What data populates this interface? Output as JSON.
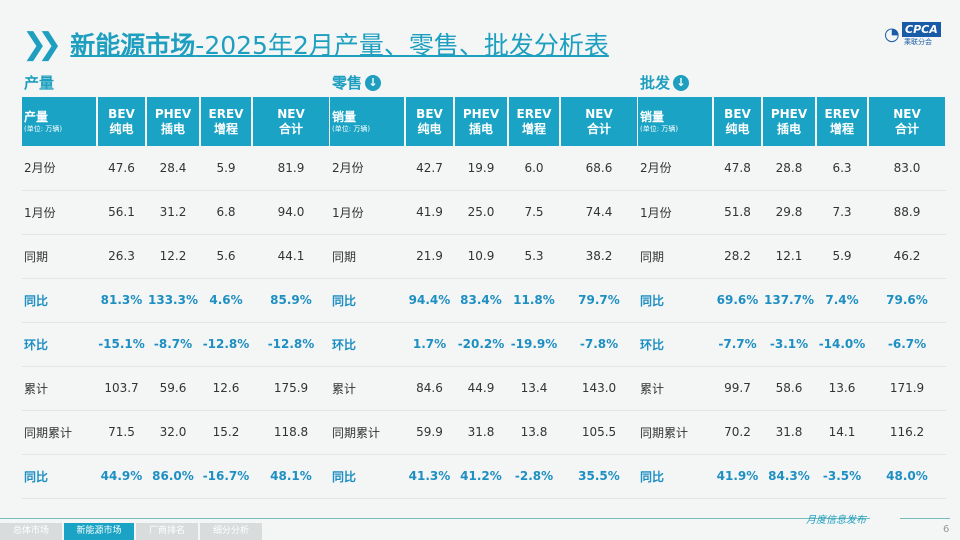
{
  "title": {
    "bold": "新能源市场",
    "rest": "-2025年2月产量、零售、批发分析表"
  },
  "logo": {
    "text": "CPCA",
    "sub": "乘联分会"
  },
  "col_headers": [
    {
      "en": "BEV",
      "zh": "纯电"
    },
    {
      "en": "PHEV",
      "zh": "插电"
    },
    {
      "en": "EREV",
      "zh": "增程"
    },
    {
      "en": "NEV",
      "zh": "合计"
    }
  ],
  "unit": "(单位: 万辆)",
  "tables": [
    {
      "section": "产量",
      "label_header": "产量",
      "rows": [
        {
          "label": "2月份",
          "values": [
            "47.6",
            "28.4",
            "5.9",
            "81.9"
          ],
          "highlight": false
        },
        {
          "label": "1月份",
          "values": [
            "56.1",
            "31.2",
            "6.8",
            "94.0"
          ],
          "highlight": false
        },
        {
          "label": "同期",
          "values": [
            "26.3",
            "12.2",
            "5.6",
            "44.1"
          ],
          "highlight": false
        },
        {
          "label": "同比",
          "values": [
            "81.3%",
            "133.3%",
            "4.6%",
            "85.9%"
          ],
          "highlight": true
        },
        {
          "label": "环比",
          "values": [
            "-15.1%",
            "-8.7%",
            "-12.8%",
            "-12.8%"
          ],
          "highlight": true
        },
        {
          "label": "累计",
          "values": [
            "103.7",
            "59.6",
            "12.6",
            "175.9"
          ],
          "highlight": false
        },
        {
          "label": "同期累计",
          "values": [
            "71.5",
            "32.0",
            "15.2",
            "118.8"
          ],
          "highlight": false
        },
        {
          "label": "同比",
          "values": [
            "44.9%",
            "86.0%",
            "-16.7%",
            "48.1%"
          ],
          "highlight": true
        }
      ]
    },
    {
      "section": "零售",
      "label_header": "销量",
      "rows": [
        {
          "label": "2月份",
          "values": [
            "42.7",
            "19.9",
            "6.0",
            "68.6"
          ],
          "highlight": false
        },
        {
          "label": "1月份",
          "values": [
            "41.9",
            "25.0",
            "7.5",
            "74.4"
          ],
          "highlight": false
        },
        {
          "label": "同期",
          "values": [
            "21.9",
            "10.9",
            "5.3",
            "38.2"
          ],
          "highlight": false
        },
        {
          "label": "同比",
          "values": [
            "94.4%",
            "83.4%",
            "11.8%",
            "79.7%"
          ],
          "highlight": true
        },
        {
          "label": "环比",
          "values": [
            "1.7%",
            "-20.2%",
            "-19.9%",
            "-7.8%"
          ],
          "highlight": true
        },
        {
          "label": "累计",
          "values": [
            "84.6",
            "44.9",
            "13.4",
            "143.0"
          ],
          "highlight": false
        },
        {
          "label": "同期累计",
          "values": [
            "59.9",
            "31.8",
            "13.8",
            "105.5"
          ],
          "highlight": false
        },
        {
          "label": "同比",
          "values": [
            "41.3%",
            "41.2%",
            "-2.8%",
            "35.5%"
          ],
          "highlight": true
        }
      ]
    },
    {
      "section": "批发",
      "label_header": "销量",
      "rows": [
        {
          "label": "2月份",
          "values": [
            "47.8",
            "28.8",
            "6.3",
            "83.0"
          ],
          "highlight": false
        },
        {
          "label": "1月份",
          "values": [
            "51.8",
            "29.8",
            "7.3",
            "88.9"
          ],
          "highlight": false
        },
        {
          "label": "同期",
          "values": [
            "28.2",
            "12.1",
            "5.9",
            "46.2"
          ],
          "highlight": false
        },
        {
          "label": "同比",
          "values": [
            "69.6%",
            "137.7%",
            "7.4%",
            "79.6%"
          ],
          "highlight": true
        },
        {
          "label": "环比",
          "values": [
            "-7.7%",
            "-3.1%",
            "-14.0%",
            "-6.7%"
          ],
          "highlight": true
        },
        {
          "label": "累计",
          "values": [
            "99.7",
            "58.6",
            "13.6",
            "171.9"
          ],
          "highlight": false
        },
        {
          "label": "同期累计",
          "values": [
            "70.2",
            "31.8",
            "14.1",
            "116.2"
          ],
          "highlight": false
        },
        {
          "label": "同比",
          "values": [
            "41.9%",
            "84.3%",
            "-3.5%",
            "48.0%"
          ],
          "highlight": true
        }
      ]
    }
  ],
  "footer": {
    "text": "月度信息发布",
    "page": "6",
    "tabs": [
      "总体市场",
      "新能源市场",
      "厂商排名",
      "细分分析"
    ],
    "active_tab": 1
  },
  "colors": {
    "accent": "#1aa3c4",
    "highlight_text": "#1e8fc2"
  }
}
